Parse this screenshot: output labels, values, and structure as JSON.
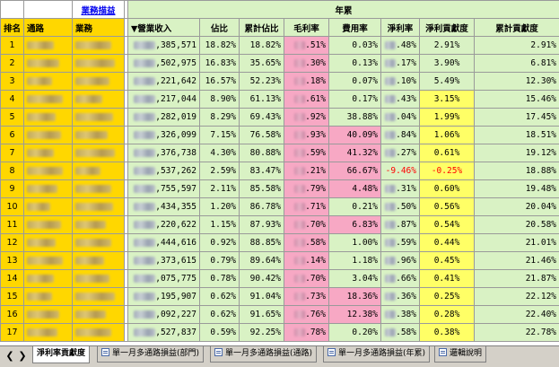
{
  "header": {
    "biz_link": "業務描益",
    "year_title": "年累",
    "rank": "排名",
    "channel": "通路",
    "biz": "業務",
    "revenue": "▼營業收入",
    "ratio": "佔比",
    "cum_ratio": "累計佔比",
    "gross_margin": "毛利率",
    "expense_rate": "費用率",
    "net_rate": "淨利率",
    "net_contrib": "淨利貢獻度",
    "cum_contrib": "累計貢獻度"
  },
  "rows": [
    {
      "rank": "1",
      "revenue": ",385,571",
      "ratio": "18.82%",
      "cum": "18.82%",
      "gm": ".51%",
      "exp": "0.03%",
      "net": ".48%",
      "contrib": "2.91%",
      "cumc": "2.91%"
    },
    {
      "rank": "2",
      "revenue": ",502,975",
      "ratio": "16.83%",
      "cum": "35.65%",
      "gm": ".30%",
      "exp": "0.13%",
      "net": ".17%",
      "contrib": "3.90%",
      "cumc": "6.81%"
    },
    {
      "rank": "3",
      "revenue": ",221,642",
      "ratio": "16.57%",
      "cum": "52.23%",
      "gm": ".18%",
      "exp": "0.07%",
      "net": ".10%",
      "contrib": "5.49%",
      "cumc": "12.30%"
    },
    {
      "rank": "4",
      "revenue": ",217,044",
      "ratio": "8.90%",
      "cum": "61.13%",
      "gm": ".61%",
      "exp": "0.17%",
      "net": ".43%",
      "contrib": "3.15%",
      "cumc": "15.46%"
    },
    {
      "rank": "5",
      "revenue": ",282,019",
      "ratio": "8.29%",
      "cum": "69.43%",
      "gm": ".92%",
      "exp": "38.88%",
      "net": ".04%",
      "contrib": "1.99%",
      "cumc": "17.45%"
    },
    {
      "rank": "6",
      "revenue": ",326,099",
      "ratio": "7.15%",
      "cum": "76.58%",
      "gm": ".93%",
      "exp": "40.09%",
      "net": ".84%",
      "contrib": "1.06%",
      "cumc": "18.51%"
    },
    {
      "rank": "7",
      "revenue": ",376,738",
      "ratio": "4.30%",
      "cum": "80.88%",
      "gm": ".59%",
      "exp": "41.32%",
      "net": ".27%",
      "contrib": "0.61%",
      "cumc": "19.12%"
    },
    {
      "rank": "8",
      "revenue": ",537,262",
      "ratio": "2.59%",
      "cum": "83.47%",
      "gm": ".21%",
      "exp": "66.67%",
      "net": "-9.46%",
      "contrib": "-0.25%",
      "cumc": "18.88%"
    },
    {
      "rank": "9",
      "revenue": ",755,597",
      "ratio": "2.11%",
      "cum": "85.58%",
      "gm": ".79%",
      "exp": "4.48%",
      "net": ".31%",
      "contrib": "0.60%",
      "cumc": "19.48%"
    },
    {
      "rank": "10",
      "revenue": ",434,355",
      "ratio": "1.20%",
      "cum": "86.78%",
      "gm": ".71%",
      "exp": "0.21%",
      "net": ".50%",
      "contrib": "0.56%",
      "cumc": "20.04%"
    },
    {
      "rank": "11",
      "revenue": ",220,622",
      "ratio": "1.15%",
      "cum": "87.93%",
      "gm": ".70%",
      "exp": "6.83%",
      "net": ".87%",
      "contrib": "0.54%",
      "cumc": "20.58%"
    },
    {
      "rank": "12",
      "revenue": ",444,616",
      "ratio": "0.92%",
      "cum": "88.85%",
      "gm": ".58%",
      "exp": "1.00%",
      "net": ".59%",
      "contrib": "0.44%",
      "cumc": "21.01%"
    },
    {
      "rank": "13",
      "revenue": ",373,615",
      "ratio": "0.79%",
      "cum": "89.64%",
      "gm": ".14%",
      "exp": "1.18%",
      "net": ".96%",
      "contrib": "0.45%",
      "cumc": "21.46%"
    },
    {
      "rank": "14",
      "revenue": ",075,775",
      "ratio": "0.78%",
      "cum": "90.42%",
      "gm": ".70%",
      "exp": "3.04%",
      "net": ".66%",
      "contrib": "0.41%",
      "cumc": "21.87%"
    },
    {
      "rank": "15",
      "revenue": ",195,907",
      "ratio": "0.62%",
      "cum": "91.04%",
      "gm": ".73%",
      "exp": "18.36%",
      "net": ".36%",
      "contrib": "0.25%",
      "cumc": "22.12%"
    },
    {
      "rank": "16",
      "revenue": ",092,227",
      "ratio": "0.62%",
      "cum": "91.65%",
      "gm": ".76%",
      "exp": "12.38%",
      "net": ".38%",
      "contrib": "0.28%",
      "cumc": "22.40%"
    },
    {
      "rank": "17",
      "revenue": ",527,837",
      "ratio": "0.59%",
      "cum": "92.25%",
      "gm": ".78%",
      "exp": "0.20%",
      "net": ".58%",
      "contrib": "0.38%",
      "cumc": "22.78%"
    }
  ],
  "highlights": {
    "pink_gm": [
      1,
      2,
      3,
      4,
      5,
      6,
      7,
      8,
      9,
      10,
      11,
      12,
      13,
      14,
      15,
      16,
      17
    ],
    "pink_exp": [
      6,
      7,
      8,
      9,
      11,
      15,
      16
    ],
    "yellow_contrib": [
      4,
      5,
      6,
      7,
      8,
      9,
      10,
      11,
      12,
      13,
      14,
      15,
      16,
      17
    ]
  },
  "tabs": {
    "first": "淨利率貢獻度",
    "t2": "單一月多通路損益(部門)",
    "t3": "單一月多通路損益(通路)",
    "t4": "單一月多通路損益(年累)",
    "t5": "邏輯說明"
  },
  "colors": {
    "header_green": "#d9f2c4",
    "name_yellow": "#ffd700",
    "pink": "#f7a8c4",
    "contrib_yellow": "#ffff66",
    "negative": "#ff0000"
  }
}
